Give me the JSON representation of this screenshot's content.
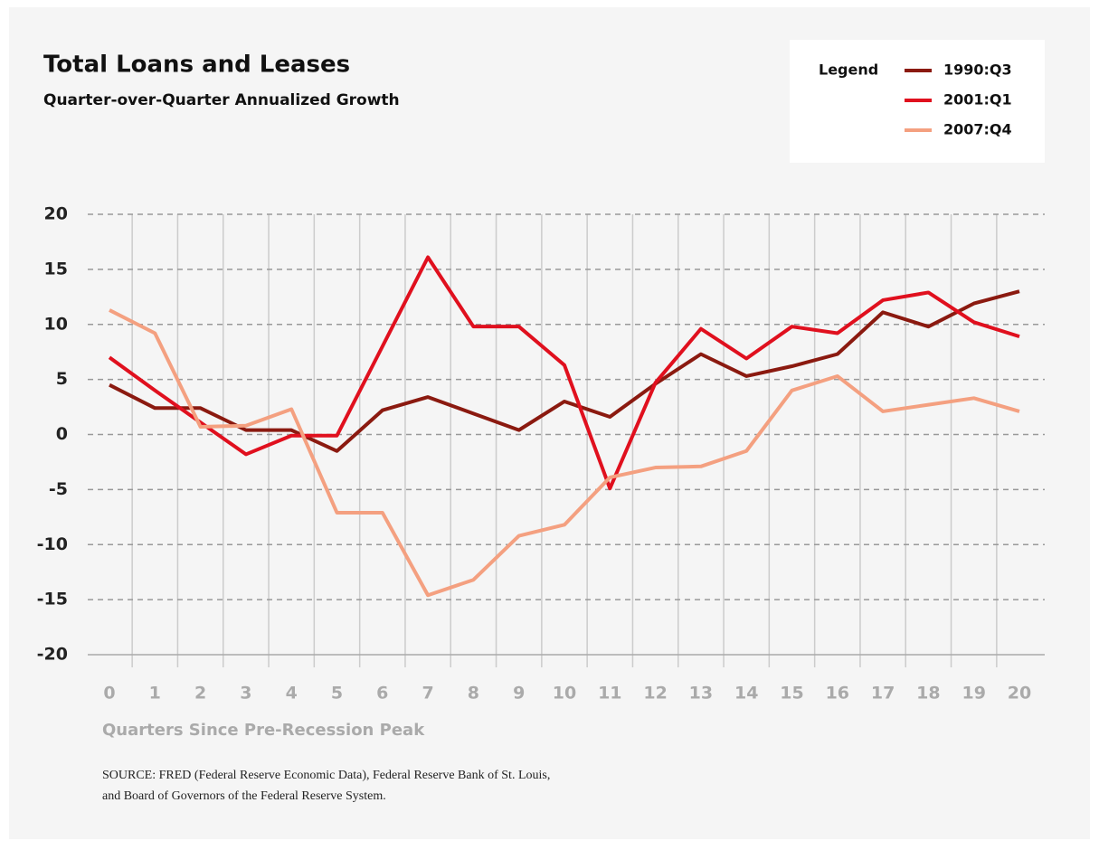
{
  "chart_data": {
    "type": "line",
    "title": "Total Loans and Leases",
    "subtitle": "Quarter-over-Quarter Annualized Growth",
    "legend_title": "Legend",
    "xlabel": "Quarters Since Pre-Recession Peak",
    "source": [
      "SOURCE: FRED (Federal Reserve Economic Data), Federal Reserve Bank of St. Louis,",
      "and Board of Governors of the Federal Reserve System."
    ],
    "x": [
      0,
      1,
      2,
      3,
      4,
      5,
      6,
      7,
      8,
      9,
      10,
      11,
      12,
      13,
      14,
      15,
      16,
      17,
      18,
      19,
      20
    ],
    "xlim": [
      0,
      20
    ],
    "xticks": [
      0,
      1,
      2,
      3,
      4,
      5,
      6,
      7,
      8,
      9,
      10,
      11,
      12,
      13,
      14,
      15,
      16,
      17,
      18,
      19,
      20
    ],
    "ylim": [
      -20,
      20
    ],
    "yticks": [
      -20,
      -15,
      -10,
      -5,
      0,
      5,
      10,
      15,
      20
    ],
    "grid": true,
    "legend": "top-right",
    "series": [
      {
        "name": "1990:Q3",
        "color": "#8b1a10",
        "values": [
          4.5,
          2.4,
          2.4,
          0.4,
          0.4,
          -1.5,
          2.2,
          3.4,
          1.9,
          0.4,
          3.0,
          1.6,
          4.6,
          7.3,
          5.3,
          6.2,
          7.3,
          11.1,
          9.8,
          11.9,
          13.0
        ]
      },
      {
        "name": "2001:Q1",
        "color": "#e0101e",
        "values": [
          7.0,
          4.0,
          1.1,
          -1.8,
          -0.1,
          -0.1,
          8.0,
          16.1,
          9.8,
          9.8,
          6.3,
          -4.9,
          4.7,
          9.6,
          6.9,
          9.8,
          9.2,
          12.2,
          12.9,
          10.2,
          8.9
        ]
      },
      {
        "name": "2007:Q4",
        "color": "#f4a080",
        "values": [
          11.3,
          9.2,
          0.7,
          0.8,
          2.3,
          -7.1,
          -7.1,
          -14.6,
          -13.2,
          -9.2,
          -8.2,
          -3.9,
          -3.0,
          -2.9,
          -1.5,
          4.0,
          5.3,
          2.1,
          2.7,
          3.3,
          2.1
        ]
      }
    ]
  }
}
